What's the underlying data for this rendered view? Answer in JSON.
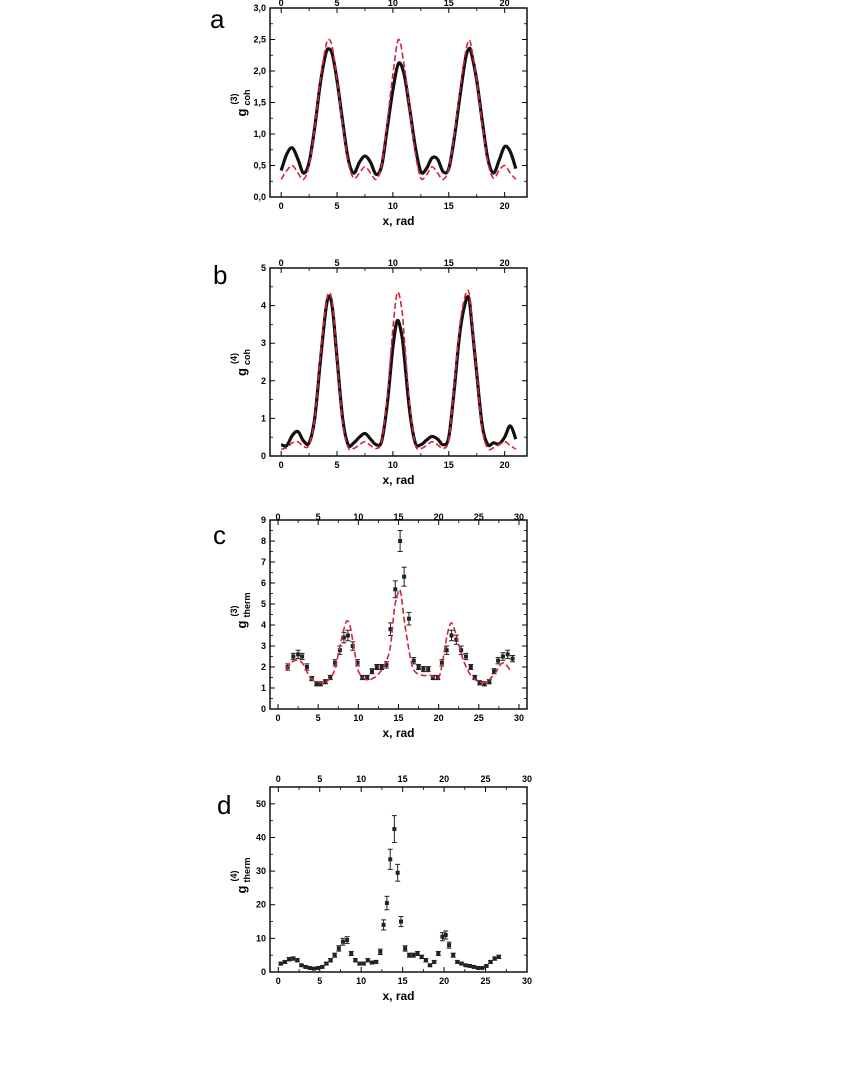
{
  "chart_data": [
    {
      "panel": "a",
      "type": "line",
      "xlabel": "x, rad",
      "ylabel": {
        "main": "g",
        "sup": "(3)",
        "sub": "coh"
      },
      "xlim": [
        -1,
        22
      ],
      "ylim": [
        0,
        3
      ],
      "x_ticks": [
        0,
        5,
        10,
        15,
        20
      ],
      "x_tick_labels": [
        "0",
        "5",
        "10",
        "15",
        "20"
      ],
      "y_ticks": [
        0,
        0.5,
        1,
        1.5,
        2,
        2.5,
        3
      ],
      "y_tick_labels": [
        "0,0",
        "0,5",
        "1,0",
        "1,5",
        "2,0",
        "2,5",
        "3,0"
      ],
      "top_axis": true,
      "series": [
        {
          "style": "black-thick-solid",
          "color": "#111111",
          "x": [
            0,
            0.5,
            1,
            1.5,
            2,
            2.5,
            3,
            3.5,
            4,
            4.3,
            4.6,
            5,
            5.5,
            6,
            6.5,
            7,
            7.5,
            8,
            8.5,
            9,
            9.5,
            10,
            10.5,
            11,
            11.5,
            12,
            12.5,
            13,
            13.5,
            14,
            14.5,
            15,
            15.5,
            16,
            16.5,
            16.8,
            17,
            17.5,
            18,
            18.5,
            19,
            19.5,
            20,
            20.5,
            21
          ],
          "y": [
            0.42,
            0.68,
            0.78,
            0.6,
            0.38,
            0.55,
            1.1,
            1.8,
            2.28,
            2.35,
            2.25,
            1.85,
            1.2,
            0.6,
            0.38,
            0.55,
            0.65,
            0.55,
            0.36,
            0.5,
            1.1,
            1.7,
            2.12,
            1.95,
            1.4,
            0.8,
            0.4,
            0.45,
            0.62,
            0.6,
            0.4,
            0.45,
            0.95,
            1.6,
            2.2,
            2.35,
            2.3,
            1.85,
            1.2,
            0.6,
            0.38,
            0.58,
            0.8,
            0.72,
            0.45
          ]
        },
        {
          "style": "red-dashed",
          "color": "#d6223a",
          "x": [
            0,
            0.5,
            1,
            1.5,
            2,
            2.5,
            3,
            3.5,
            4,
            4.3,
            4.6,
            5,
            5.5,
            6,
            6.5,
            7,
            7.5,
            8,
            8.5,
            9,
            9.5,
            10,
            10.5,
            11,
            11.5,
            12,
            12.5,
            13,
            13.5,
            14,
            14.5,
            15,
            15.5,
            16,
            16.5,
            16.8,
            17,
            17.5,
            18,
            18.5,
            19,
            19.5,
            20,
            20.5,
            21
          ],
          "y": [
            0.28,
            0.42,
            0.5,
            0.38,
            0.28,
            0.5,
            1.1,
            1.85,
            2.4,
            2.5,
            2.35,
            1.85,
            1.15,
            0.55,
            0.3,
            0.38,
            0.48,
            0.38,
            0.28,
            0.5,
            1.2,
            1.95,
            2.5,
            2.1,
            1.4,
            0.7,
            0.3,
            0.35,
            0.48,
            0.38,
            0.28,
            0.45,
            1.0,
            1.7,
            2.3,
            2.48,
            2.4,
            1.85,
            1.15,
            0.55,
            0.3,
            0.42,
            0.5,
            0.38,
            0.28
          ]
        }
      ]
    },
    {
      "panel": "b",
      "type": "line",
      "xlabel": "x, rad",
      "ylabel": {
        "main": "g",
        "sup": "(4)",
        "sub": "coh"
      },
      "xlim": [
        -1,
        22
      ],
      "ylim": [
        0,
        5
      ],
      "x_ticks": [
        0,
        5,
        10,
        15,
        20
      ],
      "x_tick_labels": [
        "0",
        "5",
        "10",
        "15",
        "20"
      ],
      "y_ticks": [
        0,
        1,
        2,
        3,
        4,
        5
      ],
      "y_tick_labels": [
        "0",
        "1",
        "2",
        "3",
        "4",
        "5"
      ],
      "top_axis": true,
      "series": [
        {
          "style": "black-thick-solid",
          "color": "#111111",
          "x": [
            0,
            0.5,
            1,
            1.5,
            2,
            2.5,
            3,
            3.5,
            4,
            4.3,
            4.6,
            5,
            5.5,
            6,
            6.5,
            7,
            7.5,
            8,
            8.5,
            9,
            9.5,
            10,
            10.4,
            10.8,
            11,
            11.5,
            12,
            12.5,
            13,
            13.5,
            14,
            14.5,
            15,
            15.5,
            16,
            16.5,
            16.8,
            17,
            17.5,
            18,
            18.5,
            19,
            19.5,
            20,
            20.5,
            21
          ],
          "y": [
            0.3,
            0.28,
            0.55,
            0.65,
            0.4,
            0.35,
            1.0,
            2.5,
            3.9,
            4.25,
            3.9,
            2.6,
            1.0,
            0.3,
            0.35,
            0.5,
            0.6,
            0.45,
            0.3,
            0.4,
            1.4,
            2.9,
            3.6,
            3.2,
            2.7,
            1.2,
            0.35,
            0.3,
            0.42,
            0.52,
            0.45,
            0.3,
            0.5,
            1.8,
            3.3,
            4.1,
            4.2,
            3.7,
            2.2,
            0.8,
            0.3,
            0.35,
            0.32,
            0.5,
            0.8,
            0.45
          ]
        },
        {
          "style": "red-dashed",
          "color": "#d6223a",
          "x": [
            0,
            0.5,
            1,
            1.5,
            2,
            2.5,
            3,
            3.5,
            4,
            4.3,
            4.6,
            5,
            5.5,
            6,
            6.5,
            7,
            7.5,
            8,
            8.5,
            9,
            9.5,
            10,
            10.4,
            10.8,
            11,
            11.5,
            12,
            12.5,
            13,
            13.5,
            14,
            14.5,
            15,
            15.5,
            16,
            16.5,
            16.8,
            17,
            17.5,
            18,
            18.5,
            19,
            19.5,
            20,
            20.5,
            21
          ],
          "y": [
            0.18,
            0.22,
            0.35,
            0.38,
            0.25,
            0.3,
            1.0,
            2.6,
            4.0,
            4.35,
            4.0,
            2.6,
            0.9,
            0.22,
            0.2,
            0.3,
            0.38,
            0.28,
            0.2,
            0.4,
            1.6,
            3.4,
            4.35,
            3.9,
            3.2,
            1.4,
            0.3,
            0.2,
            0.28,
            0.38,
            0.3,
            0.2,
            0.45,
            1.9,
            3.5,
            4.3,
            4.35,
            3.8,
            2.2,
            0.7,
            0.2,
            0.22,
            0.3,
            0.38,
            0.28,
            0.18
          ]
        }
      ]
    },
    {
      "panel": "c",
      "type": "scatter",
      "xlabel": "x, rad",
      "ylabel": {
        "main": "g",
        "sup": "(3)",
        "sub": "therm"
      },
      "xlim": [
        -1,
        31
      ],
      "ylim": [
        0,
        9
      ],
      "x_ticks": [
        0,
        5,
        10,
        15,
        20,
        25,
        30
      ],
      "x_tick_labels": [
        "0",
        "5",
        "10",
        "15",
        "20",
        "25",
        "30"
      ],
      "y_ticks": [
        0,
        1,
        2,
        3,
        4,
        5,
        6,
        7,
        8,
        9
      ],
      "y_tick_labels": [
        "0",
        "1",
        "2",
        "3",
        "4",
        "5",
        "6",
        "7",
        "8",
        "9"
      ],
      "top_axis": true,
      "series": [
        {
          "style": "points-errorbars",
          "color": "#222222",
          "x": [
            1.2,
            1.9,
            2.5,
            3.0,
            3.6,
            4.2,
            4.8,
            5.3,
            5.9,
            6.5,
            7.1,
            7.7,
            8.2,
            8.7,
            9.3,
            9.9,
            10.5,
            11.1,
            11.7,
            12.3,
            12.9,
            13.5,
            14.0,
            14.6,
            15.2,
            15.7,
            16.3,
            16.9,
            17.5,
            18.1,
            18.7,
            19.3,
            19.9,
            20.4,
            21.0,
            21.6,
            22.2,
            22.8,
            23.4,
            24.0,
            24.5,
            25.1,
            25.7,
            26.3,
            26.9,
            27.4,
            28.0,
            28.6,
            29.2
          ],
          "y": [
            2.0,
            2.5,
            2.6,
            2.5,
            2.0,
            1.45,
            1.2,
            1.2,
            1.3,
            1.5,
            2.2,
            2.8,
            3.4,
            3.5,
            3.0,
            2.2,
            1.5,
            1.5,
            1.8,
            2.0,
            2.0,
            2.1,
            3.8,
            5.7,
            8.0,
            6.3,
            4.3,
            2.3,
            2.0,
            1.9,
            1.9,
            1.5,
            1.5,
            2.2,
            2.8,
            3.5,
            3.3,
            2.8,
            2.5,
            2.0,
            1.5,
            1.25,
            1.2,
            1.3,
            1.8,
            2.3,
            2.5,
            2.6,
            2.4
          ],
          "err": [
            0.15,
            0.15,
            0.2,
            0.15,
            0.15,
            0.1,
            0.1,
            0.1,
            0.1,
            0.1,
            0.15,
            0.2,
            0.25,
            0.25,
            0.2,
            0.15,
            0.1,
            0.1,
            0.12,
            0.12,
            0.12,
            0.15,
            0.3,
            0.4,
            0.5,
            0.45,
            0.3,
            0.15,
            0.12,
            0.12,
            0.12,
            0.1,
            0.1,
            0.15,
            0.2,
            0.25,
            0.22,
            0.2,
            0.15,
            0.12,
            0.1,
            0.1,
            0.1,
            0.1,
            0.12,
            0.15,
            0.18,
            0.2,
            0.15
          ]
        },
        {
          "style": "red-dashed",
          "color": "#d6223a",
          "x": [
            1,
            2,
            3,
            4,
            5,
            6,
            7,
            7.6,
            8.2,
            8.6,
            9,
            9.5,
            10,
            11,
            12,
            12.8,
            13.5,
            14,
            14.5,
            15,
            15.3,
            15.8,
            16.5,
            17,
            18,
            19,
            20,
            20.6,
            21.1,
            21.6,
            22.2,
            23,
            24,
            25,
            26,
            27,
            28,
            29
          ],
          "y": [
            1.9,
            2.3,
            2.2,
            1.5,
            1.3,
            1.3,
            1.8,
            2.8,
            3.8,
            4.2,
            3.9,
            2.8,
            1.8,
            1.4,
            1.5,
            1.8,
            2.3,
            3.0,
            4.8,
            5.6,
            5.5,
            4.0,
            2.4,
            1.8,
            1.6,
            1.6,
            1.5,
            2.5,
            3.6,
            4.1,
            3.5,
            2.4,
            1.6,
            1.3,
            1.3,
            1.7,
            2.2,
            1.8
          ]
        }
      ]
    },
    {
      "panel": "d",
      "type": "scatter",
      "xlabel": "x, rad",
      "ylabel": {
        "main": "g",
        "sup": "(4)",
        "sub": "therm"
      },
      "xlim": [
        -1,
        30
      ],
      "ylim": [
        0,
        55
      ],
      "x_ticks": [
        0,
        5,
        10,
        15,
        20,
        25,
        30
      ],
      "x_tick_labels": [
        "0",
        "5",
        "10",
        "15",
        "20",
        "25",
        "30"
      ],
      "y_ticks": [
        0,
        10,
        20,
        30,
        40,
        50
      ],
      "y_tick_labels": [
        "0",
        "10",
        "20",
        "30",
        "40",
        "50"
      ],
      "top_axis": true,
      "series": [
        {
          "style": "points-errorbars",
          "color": "#222222",
          "x": [
            0.3,
            0.8,
            1.3,
            1.8,
            2.3,
            2.8,
            3.3,
            3.8,
            4.3,
            4.8,
            5.3,
            5.8,
            6.3,
            6.8,
            7.3,
            7.8,
            8.3,
            8.8,
            9.3,
            9.8,
            10.3,
            10.8,
            11.3,
            11.8,
            12.3,
            12.7,
            13.1,
            13.5,
            14.0,
            14.4,
            14.8,
            15.3,
            15.8,
            16.3,
            16.8,
            17.3,
            17.8,
            18.3,
            18.8,
            19.3,
            19.8,
            20.2,
            20.6,
            21.1,
            21.6,
            22.1,
            22.6,
            23.1,
            23.6,
            24.1,
            24.6,
            25.1,
            25.6,
            26.1,
            26.6
          ],
          "y": [
            2.5,
            3.0,
            3.8,
            4.0,
            3.5,
            2.0,
            1.5,
            1.2,
            1.0,
            1.2,
            1.5,
            2.5,
            3.5,
            5.0,
            7.0,
            9.0,
            9.5,
            5.5,
            3.5,
            2.5,
            2.5,
            3.5,
            2.8,
            3.0,
            6.0,
            14.0,
            20.5,
            33.5,
            42.5,
            29.5,
            15.0,
            7.0,
            5.0,
            5.0,
            5.5,
            4.5,
            3.5,
            2.0,
            3.0,
            5.5,
            10.5,
            11.0,
            8.0,
            5.0,
            3.0,
            2.5,
            2.0,
            1.8,
            1.5,
            1.2,
            1.2,
            1.8,
            3.0,
            4.0,
            4.5
          ],
          "err": [
            0.4,
            0.4,
            0.5,
            0.5,
            0.5,
            0.3,
            0.3,
            0.2,
            0.2,
            0.2,
            0.3,
            0.4,
            0.5,
            0.6,
            0.8,
            1.0,
            1.0,
            0.6,
            0.5,
            0.4,
            0.4,
            0.5,
            0.4,
            0.4,
            0.8,
            1.5,
            2.0,
            3.0,
            4.0,
            2.5,
            1.5,
            0.8,
            0.6,
            0.6,
            0.6,
            0.5,
            0.5,
            0.3,
            0.4,
            0.6,
            1.2,
            1.2,
            0.9,
            0.6,
            0.4,
            0.4,
            0.3,
            0.3,
            0.3,
            0.2,
            0.2,
            0.3,
            0.4,
            0.5,
            0.5
          ]
        }
      ]
    }
  ]
}
